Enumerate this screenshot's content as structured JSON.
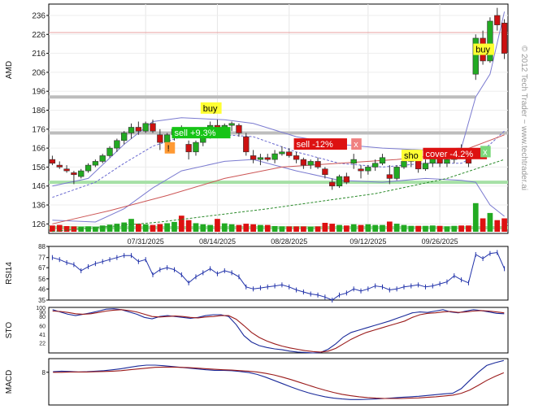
{
  "watermark": "© 2012 Tech Trader ~ www.techtrader.ai",
  "chart_data": [
    {
      "type": "candlestick",
      "panel": "price",
      "ylabel": "AMD",
      "y_ticks": [
        126,
        136,
        146,
        156,
        166,
        176,
        186,
        196,
        206,
        216,
        226,
        236
      ],
      "ylim": [
        121,
        242
      ],
      "x_tick_labels": [
        "07/31/2025",
        "08/14/2025",
        "08/28/2025",
        "09/12/2025",
        "09/26/2025"
      ],
      "x_tick_index": [
        13,
        23,
        33,
        44,
        54
      ],
      "n_sessions": 64,
      "ohlc": [
        [
          160,
          162,
          157,
          158
        ],
        [
          157,
          159,
          155,
          156
        ],
        [
          155,
          157,
          153,
          154
        ],
        [
          153,
          154,
          147,
          152
        ],
        [
          151,
          155,
          150,
          154
        ],
        [
          154,
          158,
          153,
          157
        ],
        [
          157,
          160,
          156,
          159
        ],
        [
          159,
          163,
          158,
          162
        ],
        [
          162,
          167,
          161,
          166
        ],
        [
          166,
          171,
          164,
          170
        ],
        [
          170,
          175,
          168,
          174
        ],
        [
          174,
          179,
          171,
          177
        ],
        [
          177,
          180,
          173,
          175
        ],
        [
          175,
          180,
          174,
          179
        ],
        [
          179,
          181,
          174,
          175
        ],
        [
          173,
          176,
          165,
          169
        ],
        [
          169,
          174,
          167,
          173
        ],
        [
          173,
          177,
          170,
          176
        ],
        [
          176,
          178,
          173,
          175
        ],
        [
          168,
          170,
          160,
          164
        ],
        [
          164,
          170,
          162,
          169
        ],
        [
          169,
          175,
          167,
          173
        ],
        [
          173,
          180,
          171,
          178
        ],
        [
          178,
          181,
          174,
          175
        ],
        [
          175,
          179,
          173,
          178
        ],
        [
          178,
          180,
          175,
          179
        ],
        [
          178,
          179,
          172,
          174
        ],
        [
          172,
          174,
          162,
          164
        ],
        [
          162,
          165,
          158,
          160
        ],
        [
          160,
          163,
          157,
          161
        ],
        [
          161,
          163,
          159,
          160
        ],
        [
          160,
          165,
          158,
          163
        ],
        [
          163,
          167,
          162,
          164
        ],
        [
          164,
          166,
          161,
          162
        ],
        [
          162,
          164,
          158,
          160
        ],
        [
          160,
          161,
          155,
          157
        ],
        [
          157,
          160,
          155,
          159
        ],
        [
          159,
          161,
          155,
          156
        ],
        [
          155,
          156,
          150,
          152
        ],
        [
          148,
          150,
          144,
          146
        ],
        [
          146,
          152,
          145,
          151
        ],
        [
          151,
          153,
          147,
          148
        ],
        [
          158,
          163,
          155,
          160
        ],
        [
          155,
          157,
          150,
          154
        ],
        [
          154,
          157,
          152,
          156
        ],
        [
          156,
          160,
          154,
          158
        ],
        [
          158,
          163,
          157,
          161
        ],
        [
          152,
          157,
          147,
          150
        ],
        [
          150,
          157,
          149,
          156
        ],
        [
          156,
          160,
          155,
          159
        ],
        [
          159,
          163,
          156,
          160
        ],
        [
          160,
          161,
          153,
          155
        ],
        [
          155,
          160,
          154,
          158
        ],
        [
          158,
          163,
          156,
          161
        ],
        [
          161,
          163,
          156,
          158
        ],
        [
          158,
          162,
          156,
          160
        ],
        [
          160,
          166,
          158,
          164
        ],
        [
          164,
          168,
          161,
          163
        ],
        [
          163,
          165,
          156,
          158
        ],
        [
          205,
          226,
          202,
          224
        ],
        [
          224,
          228,
          210,
          212
        ],
        [
          212,
          235,
          211,
          233
        ],
        [
          236,
          240,
          228,
          231
        ],
        [
          232,
          234,
          213,
          216
        ]
      ],
      "volume_relative": [
        0.35,
        0.38,
        0.32,
        0.3,
        0.28,
        0.3,
        0.27,
        0.35,
        0.4,
        0.45,
        0.52,
        0.72,
        0.45,
        0.42,
        0.38,
        0.43,
        0.48,
        0.55,
        0.9,
        0.65,
        0.48,
        0.42,
        0.38,
        0.72,
        0.47,
        0.42,
        0.38,
        0.45,
        0.42,
        0.38,
        0.38,
        0.32,
        0.3,
        0.3,
        0.3,
        0.3,
        0.28,
        0.3,
        0.5,
        0.45,
        0.38,
        0.35,
        0.42,
        0.38,
        0.42,
        0.38,
        0.38,
        0.57,
        0.45,
        0.38,
        0.33,
        0.33,
        0.33,
        0.35,
        0.33,
        0.3,
        0.33,
        0.35,
        0.35,
        1.6,
        0.75,
        1.05,
        0.65,
        0.75
      ],
      "horizontal_levels": [
        {
          "value": 227,
          "color": "#e8a0a0"
        },
        {
          "value": 193,
          "color": "#bdbdbd"
        },
        {
          "value": 174,
          "color": "#bdbdbd"
        },
        {
          "value": 148,
          "color": "#a6e0a6"
        },
        {
          "value": 124,
          "color": "#a6e0a6"
        }
      ],
      "bollinger_upper": [
        [
          0,
          146
        ],
        [
          5,
          150
        ],
        [
          10,
          168
        ],
        [
          14,
          180
        ],
        [
          18,
          182
        ],
        [
          24,
          181
        ],
        [
          28,
          179
        ],
        [
          34,
          172
        ],
        [
          40,
          168
        ],
        [
          46,
          166
        ],
        [
          52,
          165
        ],
        [
          57,
          166
        ],
        [
          59,
          193
        ],
        [
          61,
          205
        ],
        [
          63,
          238
        ]
      ],
      "bollinger_lower": [
        [
          0,
          128
        ],
        [
          6,
          127
        ],
        [
          10,
          134
        ],
        [
          14,
          145
        ],
        [
          18,
          154
        ],
        [
          24,
          159
        ],
        [
          28,
          160
        ],
        [
          34,
          154
        ],
        [
          40,
          149
        ],
        [
          46,
          148
        ],
        [
          52,
          150
        ],
        [
          57,
          149
        ],
        [
          59,
          148
        ],
        [
          61,
          136
        ],
        [
          63,
          130
        ]
      ],
      "ma_short": [
        [
          0,
          140
        ],
        [
          6,
          148
        ],
        [
          10,
          158
        ],
        [
          14,
          167
        ],
        [
          18,
          172
        ],
        [
          24,
          173
        ],
        [
          28,
          172
        ],
        [
          34,
          164
        ],
        [
          40,
          158
        ],
        [
          46,
          156
        ],
        [
          52,
          158
        ],
        [
          57,
          158
        ],
        [
          59,
          162
        ],
        [
          61,
          168
        ],
        [
          63,
          175
        ]
      ],
      "ma_long": [
        [
          0,
          126
        ],
        [
          8,
          133
        ],
        [
          16,
          141
        ],
        [
          24,
          150
        ],
        [
          32,
          156
        ],
        [
          40,
          158
        ],
        [
          48,
          160
        ],
        [
          56,
          163
        ],
        [
          63,
          173
        ]
      ],
      "ma_200": [
        [
          0,
          122
        ],
        [
          15,
          127
        ],
        [
          30,
          134
        ],
        [
          45,
          142
        ],
        [
          55,
          150
        ],
        [
          63,
          160
        ]
      ],
      "signals": [
        {
          "label": "buy",
          "i": 21,
          "price": 185,
          "bg": "#ffff33",
          "fg": "#000000"
        },
        {
          "label": "sell +9.3%",
          "i": 17,
          "price": 172,
          "bg": "#16c416",
          "fg": "#ffffff"
        },
        {
          "label": "!",
          "i": 16,
          "price": 164,
          "bg": "#ff9933",
          "fg": "#000000"
        },
        {
          "label": "sell -12%",
          "i": 34,
          "price": 166,
          "bg": "#dd1111",
          "fg": "#ffffff"
        },
        {
          "label": "x",
          "i": 42,
          "price": 166,
          "bg": "#f08080",
          "fg": "#ffffff"
        },
        {
          "label": "sho",
          "i": 49,
          "price": 160,
          "bg": "#ffff33",
          "fg": "#000000"
        },
        {
          "label": "cover -4.2%",
          "i": 52,
          "price": 161,
          "bg": "#dd1111",
          "fg": "#ffffff"
        },
        {
          "label": "x",
          "i": 60,
          "price": 162,
          "bg": "#7bd87b",
          "fg": "#ffffff"
        },
        {
          "label": "buy",
          "i": 59,
          "price": 216,
          "bg": "#ffff33",
          "fg": "#000000"
        }
      ]
    },
    {
      "type": "line",
      "panel": "rsi",
      "ylabel": "RSI14",
      "y_ticks": [
        35,
        46,
        56,
        67,
        77,
        88
      ],
      "ylim": [
        35,
        88
      ],
      "values": [
        77,
        75,
        72,
        70,
        64,
        68,
        71,
        73,
        75,
        77,
        79,
        79,
        73,
        75,
        60,
        65,
        67,
        65,
        60,
        52,
        58,
        62,
        66,
        61,
        64,
        62,
        58,
        48,
        46,
        47,
        48,
        49,
        50,
        48,
        45,
        43,
        41,
        40,
        38,
        35,
        40,
        42,
        46,
        44,
        46,
        49,
        48,
        45,
        46,
        48,
        49,
        50,
        48,
        49,
        51,
        53,
        59,
        55,
        52,
        80,
        76,
        81,
        82,
        66
      ]
    },
    {
      "type": "line",
      "panel": "stochastic",
      "ylabel": "STO",
      "y_ticks": [
        22,
        41,
        60,
        80,
        90,
        100
      ],
      "ylim": [
        0,
        100
      ],
      "series": [
        {
          "color": "#1a2a9a",
          "values": [
            95,
            90,
            85,
            82,
            85,
            88,
            92,
            96,
            97,
            95,
            90,
            85,
            78,
            75,
            80,
            82,
            80,
            78,
            76,
            78,
            82,
            84,
            84,
            80,
            62,
            38,
            24,
            16,
            12,
            9,
            7,
            4,
            2,
            1,
            0,
            1,
            8,
            20,
            35,
            45,
            50,
            55,
            60,
            65,
            70,
            76,
            82,
            88,
            90,
            89,
            92,
            95,
            90,
            88,
            92,
            95,
            93,
            90,
            87,
            86
          ]
        },
        {
          "color": "#9a1a1a",
          "values": [
            92,
            91,
            89,
            86,
            85,
            86,
            89,
            92,
            94,
            95,
            93,
            90,
            85,
            80,
            79,
            80,
            81,
            80,
            78,
            77,
            79,
            80,
            82,
            82,
            74,
            60,
            45,
            34,
            26,
            20,
            15,
            11,
            8,
            5,
            3,
            2,
            4,
            10,
            20,
            30,
            38,
            45,
            50,
            55,
            60,
            65,
            70,
            78,
            84,
            87,
            88,
            90,
            91,
            89,
            90,
            92,
            93,
            92,
            90,
            88
          ]
        }
      ]
    },
    {
      "type": "line",
      "panel": "macd",
      "ylabel": "MACD",
      "y_ticks": [
        8
      ],
      "ylim": [
        -4,
        13
      ],
      "series": [
        {
          "color": "#1a2a9a",
          "values": [
            8.2,
            8.4,
            8.3,
            8.1,
            8.2,
            8.4,
            8.6,
            8.9,
            9.3,
            9.8,
            10.3,
            10.6,
            10.6,
            10.4,
            10.1,
            9.8,
            9.5,
            9.2,
            8.9,
            8.7,
            8.7,
            8.6,
            8.3,
            7.9,
            7.2,
            6.2,
            5.0,
            3.8,
            2.6,
            1.5,
            0.5,
            -0.3,
            -1.0,
            -1.5,
            -1.8,
            -2.0,
            -2.0,
            -1.9,
            -1.8,
            -1.6,
            -1.4,
            -1.2,
            -1.0,
            -0.8,
            -0.5,
            -0.2,
            0.1,
            0.3,
            2.0,
            5.0,
            8.0,
            10.5,
            11.5,
            12.3
          ]
        },
        {
          "color": "#9a1a1a",
          "values": [
            8.0,
            8.0,
            8.1,
            8.1,
            8.1,
            8.2,
            8.3,
            8.4,
            8.6,
            8.9,
            9.2,
            9.5,
            9.8,
            9.9,
            9.9,
            9.8,
            9.7,
            9.5,
            9.3,
            9.1,
            8.9,
            8.8,
            8.6,
            8.4,
            8.1,
            7.6,
            7.0,
            6.2,
            5.3,
            4.3,
            3.3,
            2.3,
            1.4,
            0.6,
            -0.1,
            -0.6,
            -1.0,
            -1.3,
            -1.5,
            -1.6,
            -1.6,
            -1.6,
            -1.5,
            -1.4,
            -1.2,
            -1.0,
            -0.7,
            -0.4,
            0.3,
            1.5,
            3.2,
            5.0,
            6.5,
            7.8
          ]
        }
      ]
    }
  ]
}
